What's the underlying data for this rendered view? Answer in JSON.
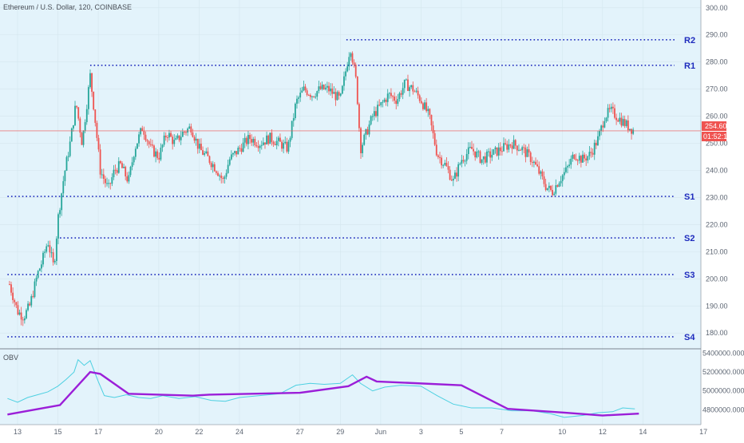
{
  "header": {
    "symbol_text": "Ethereum / U.S. Dollar, 120, COINBASE"
  },
  "indicator": {
    "label": "OBV"
  },
  "price_tag": {
    "value": "254.60",
    "countdown": "01:52:12",
    "color": "#ef5350"
  },
  "colors": {
    "up": "#26a69a",
    "down": "#ef5350",
    "levels": "#1e2bbd",
    "obv_line": "#4dd0e1",
    "obv_trend": "#9b1ed8",
    "background": "#e3f3fb"
  },
  "chart_data": [
    {
      "type": "candlestick",
      "y_range": [
        173,
        302
      ],
      "y_ticks": [
        "300.00",
        "290.00",
        "280.00",
        "270.00",
        "260.00",
        "250.00",
        "240.00",
        "230.00",
        "220.00",
        "210.00",
        "200.00",
        "190.00",
        "180.00"
      ],
      "y_tick_values": [
        300,
        290,
        280,
        270,
        260,
        250,
        240,
        230,
        220,
        210,
        200,
        190,
        180
      ],
      "x_range": [
        12.5,
        17.2
      ],
      "x_ticks": [
        "13",
        "15",
        "17",
        "20",
        "22",
        "24",
        "27",
        "29",
        "Jun",
        "3",
        "5",
        "7",
        "10",
        "12",
        "14",
        "17"
      ],
      "x_tick_values": [
        13,
        15,
        17,
        20,
        22,
        24,
        27,
        29,
        31,
        33,
        35,
        37,
        40,
        42,
        44,
        47
      ],
      "current_price": 254.6,
      "levels": [
        {
          "label": "R2",
          "price": 288.2,
          "from": 29.3
        },
        {
          "label": "R1",
          "price": 278.8,
          "from": 16.6
        },
        {
          "label": "S1",
          "price": 230.4,
          "from": 12.5
        },
        {
          "label": "S2",
          "price": 215.1,
          "from": 15.1
        },
        {
          "label": "S3",
          "price": 201.6,
          "from": 12.5
        },
        {
          "label": "S4",
          "price": 178.6,
          "from": 12.5
        }
      ],
      "path": [
        [
          12.6,
          198
        ],
        [
          13.0,
          188
        ],
        [
          13.3,
          186
        ],
        [
          13.6,
          190
        ],
        [
          14.0,
          202
        ],
        [
          14.2,
          206
        ],
        [
          14.5,
          214
        ],
        [
          14.8,
          204
        ],
        [
          15.0,
          222
        ],
        [
          15.3,
          238
        ],
        [
          15.6,
          250
        ],
        [
          15.9,
          265
        ],
        [
          16.2,
          250
        ],
        [
          16.6,
          275
        ],
        [
          16.8,
          262
        ],
        [
          17.1,
          240
        ],
        [
          17.5,
          233
        ],
        [
          17.8,
          240
        ],
        [
          18.1,
          242
        ],
        [
          18.5,
          236
        ],
        [
          18.8,
          248
        ],
        [
          19.2,
          256
        ],
        [
          19.6,
          248
        ],
        [
          20.0,
          245
        ],
        [
          20.4,
          254
        ],
        [
          20.8,
          250
        ],
        [
          21.2,
          254
        ],
        [
          21.6,
          256
        ],
        [
          22.0,
          248
        ],
        [
          22.5,
          244
        ],
        [
          22.9,
          240
        ],
        [
          23.2,
          236
        ],
        [
          23.5,
          244
        ],
        [
          24.0,
          248
        ],
        [
          24.5,
          252
        ],
        [
          25.0,
          250
        ],
        [
          25.5,
          252
        ],
        [
          26.0,
          250
        ],
        [
          26.4,
          248
        ],
        [
          26.8,
          265
        ],
        [
          27.2,
          270
        ],
        [
          27.6,
          268
        ],
        [
          28.0,
          270
        ],
        [
          28.4,
          270
        ],
        [
          28.7,
          268
        ],
        [
          29.0,
          266
        ],
        [
          29.2,
          274
        ],
        [
          29.5,
          286
        ],
        [
          29.8,
          272
        ],
        [
          30.0,
          248
        ],
        [
          30.3,
          254
        ],
        [
          30.6,
          260
        ],
        [
          31.0,
          264
        ],
        [
          31.4,
          268
        ],
        [
          31.8,
          266
        ],
        [
          32.2,
          272
        ],
        [
          32.6,
          270
        ],
        [
          33.0,
          266
        ],
        [
          33.4,
          260
        ],
        [
          33.8,
          246
        ],
        [
          34.2,
          242
        ],
        [
          34.6,
          236
        ],
        [
          35.0,
          244
        ],
        [
          35.5,
          248
        ],
        [
          36.0,
          244
        ],
        [
          36.5,
          246
        ],
        [
          37.0,
          248
        ],
        [
          37.5,
          250
        ],
        [
          38.0,
          248
        ],
        [
          38.5,
          244
        ],
        [
          38.8,
          240
        ],
        [
          39.2,
          234
        ],
        [
          39.5,
          232
        ],
        [
          39.8,
          236
        ],
        [
          40.2,
          240
        ],
        [
          40.6,
          246
        ],
        [
          41.0,
          244
        ],
        [
          41.4,
          246
        ],
        [
          41.8,
          252
        ],
        [
          42.1,
          260
        ],
        [
          42.4,
          262
        ],
        [
          42.7,
          260
        ],
        [
          43.0,
          258
        ],
        [
          43.3,
          256
        ],
        [
          43.6,
          254.6
        ]
      ]
    },
    {
      "type": "line",
      "name": "OBV",
      "y_range": [
        4660000,
        5420000
      ],
      "y_ticks": [
        "5400000.0000",
        "5200000.0000",
        "5000000.0000",
        "4800000.0000"
      ],
      "y_tick_values": [
        5400000,
        5200000,
        5000000,
        4800000
      ],
      "x_range": [
        12.5,
        47.2
      ],
      "trend": [
        [
          12.5,
          4750000
        ],
        [
          15.1,
          4850000
        ],
        [
          16.6,
          5200000
        ],
        [
          17.1,
          5180000
        ],
        [
          18.5,
          4970000
        ],
        [
          21.7,
          4950000
        ],
        [
          22.5,
          4960000
        ],
        [
          27.0,
          4980000
        ],
        [
          29.4,
          5050000
        ],
        [
          30.3,
          5150000
        ],
        [
          30.8,
          5100000
        ],
        [
          35.0,
          5060000
        ],
        [
          37.3,
          4810000
        ],
        [
          40.1,
          4770000
        ],
        [
          42.0,
          4740000
        ],
        [
          43.8,
          4760000
        ]
      ],
      "obv": [
        [
          12.5,
          4920000
        ],
        [
          13.0,
          4880000
        ],
        [
          13.5,
          4930000
        ],
        [
          14.0,
          4960000
        ],
        [
          14.5,
          4990000
        ],
        [
          15.0,
          5050000
        ],
        [
          15.4,
          5120000
        ],
        [
          15.8,
          5200000
        ],
        [
          16.0,
          5330000
        ],
        [
          16.3,
          5270000
        ],
        [
          16.6,
          5320000
        ],
        [
          17.0,
          5100000
        ],
        [
          17.3,
          4950000
        ],
        [
          17.8,
          4930000
        ],
        [
          18.4,
          4960000
        ],
        [
          19.0,
          4930000
        ],
        [
          19.6,
          4920000
        ],
        [
          20.2,
          4950000
        ],
        [
          21.0,
          4920000
        ],
        [
          21.8,
          4940000
        ],
        [
          22.6,
          4900000
        ],
        [
          23.3,
          4890000
        ],
        [
          24.0,
          4930000
        ],
        [
          25.0,
          4950000
        ],
        [
          26.0,
          4970000
        ],
        [
          26.8,
          5060000
        ],
        [
          27.5,
          5080000
        ],
        [
          28.2,
          5070000
        ],
        [
          29.0,
          5080000
        ],
        [
          29.6,
          5170000
        ],
        [
          30.0,
          5080000
        ],
        [
          30.6,
          5000000
        ],
        [
          31.2,
          5040000
        ],
        [
          32.0,
          5060000
        ],
        [
          33.0,
          5050000
        ],
        [
          33.8,
          4950000
        ],
        [
          34.6,
          4860000
        ],
        [
          35.5,
          4820000
        ],
        [
          36.5,
          4820000
        ],
        [
          37.5,
          4790000
        ],
        [
          38.5,
          4790000
        ],
        [
          39.4,
          4760000
        ],
        [
          40.1,
          4720000
        ],
        [
          41.0,
          4740000
        ],
        [
          41.8,
          4770000
        ],
        [
          42.5,
          4780000
        ],
        [
          43.0,
          4820000
        ],
        [
          43.6,
          4810000
        ]
      ]
    }
  ]
}
